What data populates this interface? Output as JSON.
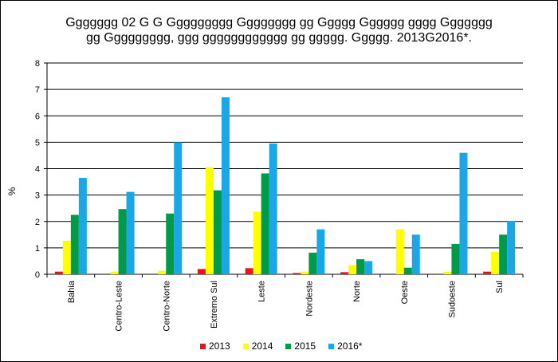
{
  "chart_data": {
    "type": "bar",
    "title": "Ggggggg 02 G G Ggggggggg Gggggggg gg Ggggg Gggggg gggg Ggggggg\ngg Ggggggggg, ggg gggggggggggg gg ggggg. Ggggg. 2013G2016*.",
    "xlabel": "",
    "ylabel": "%",
    "ylim": [
      0,
      8
    ],
    "yticks": [
      "0",
      "1",
      "2",
      "3",
      "4",
      "5",
      "6",
      "7",
      "8"
    ],
    "grid": true,
    "legend_position": "bottom",
    "categories": [
      "Bahia",
      "Centro-Leste",
      "Centro-Norte",
      "Extremo Sul",
      "Leste",
      "Nordeste",
      "Norte",
      "Oeste",
      "Sudoeste",
      "Sul"
    ],
    "series": [
      {
        "name": "2013",
        "color": "#e8141c",
        "values": [
          0.1,
          0.0,
          0.0,
          0.2,
          0.23,
          0.05,
          0.08,
          0.0,
          0.0,
          0.1
        ]
      },
      {
        "name": "2014",
        "color": "#ffff00",
        "values": [
          1.27,
          0.1,
          0.13,
          4.05,
          2.37,
          0.1,
          0.35,
          1.7,
          0.1,
          0.85
        ]
      },
      {
        "name": "2015",
        "color": "#009b48",
        "values": [
          2.25,
          2.47,
          2.3,
          3.18,
          3.82,
          0.82,
          0.57,
          0.25,
          1.15,
          1.5
        ]
      },
      {
        "name": "2016*",
        "color": "#1aa7e8",
        "values": [
          3.65,
          3.12,
          5.0,
          6.7,
          4.95,
          1.7,
          0.5,
          1.5,
          4.6,
          2.02
        ]
      }
    ]
  }
}
